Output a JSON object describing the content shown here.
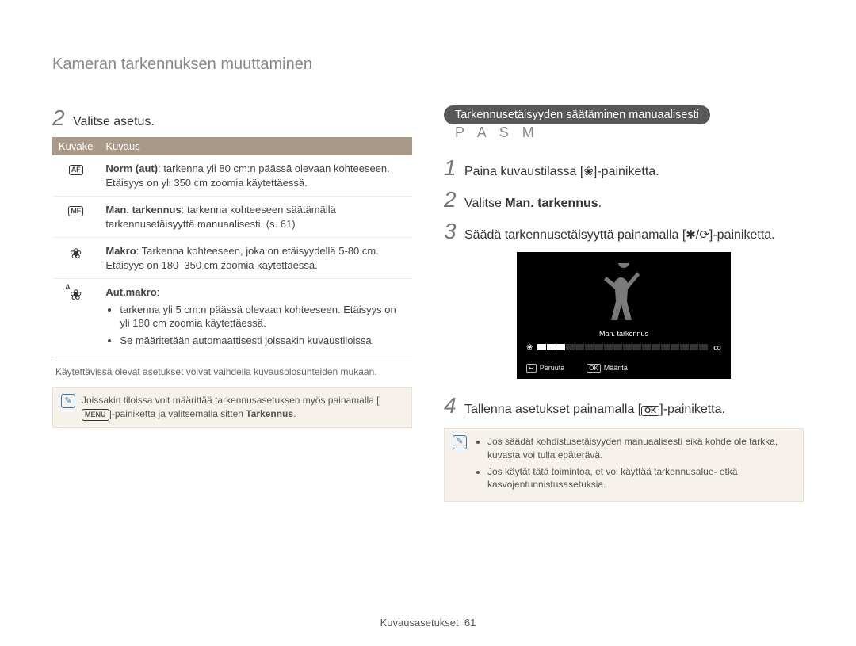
{
  "page_title": "Kameran tarkennuksen muuttaminen",
  "footer": {
    "label": "Kuvausasetukset",
    "page": "61"
  },
  "left": {
    "step2": {
      "num": "2",
      "text": "Valitse asetus."
    },
    "table": {
      "headers": [
        "Kuvake",
        "Kuvaus"
      ],
      "rows": [
        {
          "icon_label": "AF",
          "icon_type": "box",
          "desc_bold": "Norm (aut)",
          "desc": ": tarkenna yli 80 cm:n päässä olevaan kohteeseen. Etäisyys on yli 350 cm zoomia käytettäessä."
        },
        {
          "icon_label": "MF",
          "icon_type": "box",
          "desc_bold": "Man. tarkennus",
          "desc": ": tarkenna kohteeseen säätämällä tarkennusetäisyyttä manuaalisesti. (s. 61)"
        },
        {
          "icon_label": "❀",
          "icon_type": "flower",
          "desc_bold": "Makro",
          "desc": ": Tarkenna kohteeseen, joka on etäisyydellä 5-80 cm. Etäisyys on 180–350 cm zoomia käytettäessä."
        },
        {
          "icon_label": "❀",
          "icon_type": "flower-auto",
          "desc_bold": "Aut.makro",
          "desc": ":",
          "bullets": [
            "tarkenna yli 5 cm:n päässä olevaan kohteeseen. Etäisyys on yli 180 cm zoomia käytettäessä.",
            "Se määritetään automaattisesti joissakin kuvaustiloissa."
          ]
        }
      ]
    },
    "caption": "Käytettävissä olevat asetukset voivat vaihdella kuvausolosuhteiden mukaan.",
    "note": {
      "line1": "Joissakin tiloissa voit määrittää tarkennusasetuksen myös painamalla",
      "menu_label": "MENU",
      "line2": "-painiketta ja valitsemalla sitten ",
      "bold": "Tarkennus",
      "line3": "."
    }
  },
  "right": {
    "pill": "Tarkennusetäisyyden säätäminen manuaalisesti",
    "modes": "P A S M",
    "steps": [
      {
        "num": "1",
        "pre": "Paina kuvaustilassa [",
        "icon": "❀",
        "post": "]-painiketta."
      },
      {
        "num": "2",
        "pre": "Valitse ",
        "bold": "Man. tarkennus",
        "post": "."
      },
      {
        "num": "3",
        "pre": "Säädä tarkennusetäisyyttä painamalla [",
        "icon": "✱",
        "mid": "/",
        "icon2": "⟳",
        "post": "]-painiketta."
      }
    ],
    "screen": {
      "mf_label": "Man. tarkennus",
      "cancel_btn": "↩",
      "cancel": "Peruuta",
      "ok_btn": "OK",
      "ok": "Määritä",
      "flower": "❀",
      "infinity": "∞",
      "segments": 18,
      "filled": 3
    },
    "step4": {
      "num": "4",
      "pre": "Tallenna asetukset painamalla [",
      "ok": "OK",
      "post": "]-painiketta."
    },
    "note": {
      "bullets": [
        "Jos säädät kohdistusetäisyyden manuaalisesti eikä kohde ole tarkka, kuvasta voi tulla epäterävä.",
        "Jos käytät tätä toimintoa, et voi käyttää tarkennusalue- etkä kasvojentunnistusasetuksia."
      ]
    }
  }
}
